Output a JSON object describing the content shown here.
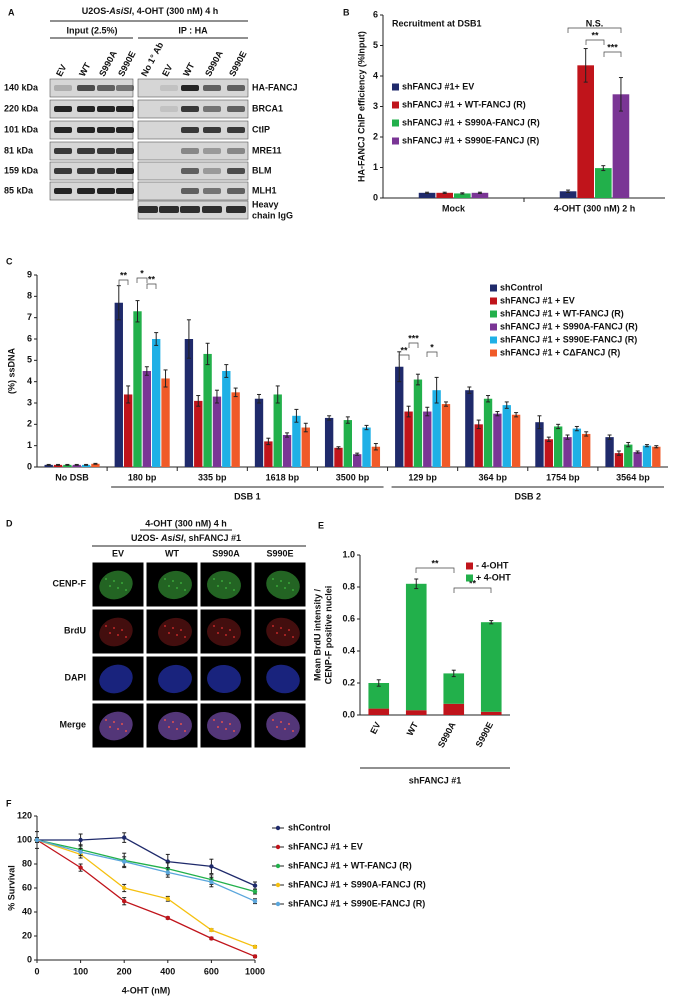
{
  "panel_labels": [
    "A",
    "B",
    "C",
    "D",
    "E",
    "F"
  ],
  "blot": {
    "title": [
      "U2OS-",
      "AsiSI",
      ", 4-OHT (300 nM) 4 h"
    ],
    "groups": [
      "Input (2.5%)",
      "IP : HA"
    ],
    "lanes": [
      "EV",
      "WT",
      "S990A",
      "S990E",
      "No 1° Ab",
      "EV",
      "WT",
      "S990A",
      "S990E"
    ],
    "markers": [
      "140 kDa",
      "220 kDa",
      "101 kDa",
      "81 kDa",
      "159 kDa",
      "85 kDa"
    ],
    "proteins": [
      "HA-FANCJ",
      "BRCA1",
      "CtIP",
      "MRE11",
      "BLM",
      "MLH1"
    ],
    "igg_label": [
      "Heavy",
      "chain IgG"
    ]
  },
  "microscopy": {
    "title": "4-OHT (300 nM) 4 h",
    "subtitle": [
      "U2OS- ",
      "AsiSI",
      ", shFANCJ #1"
    ],
    "columns": [
      "EV",
      "WT",
      "S990A",
      "S990E"
    ],
    "rows": [
      "CENP-F",
      "BrdU",
      "DAPI",
      "Merge"
    ]
  },
  "chart_data": [
    {
      "type": "bar",
      "annotation": "Recruitment at DSB1",
      "ylabel": "HA-FANCJ ChIP efficiency (%Input)",
      "categories": [
        "Mock",
        "4-OHT (300 nM) 2 h"
      ],
      "ylim": [
        0,
        6
      ],
      "yticks": [
        0,
        1,
        2,
        3,
        4,
        5,
        6
      ],
      "series": [
        {
          "name": "shFANCJ #1+ EV",
          "color": "#1f2a6b",
          "values": [
            0.17,
            0.22
          ],
          "errors": [
            0.02,
            0.04
          ]
        },
        {
          "name": "shFANCJ #1 + WT-FANCJ (R)",
          "color": "#c0141b",
          "values": [
            0.17,
            4.35
          ],
          "errors": [
            0.02,
            0.55
          ]
        },
        {
          "name": "shFANCJ #1 + S990A-FANCJ (R)",
          "color": "#22b04b",
          "values": [
            0.15,
            0.98
          ],
          "errors": [
            0.02,
            0.08
          ]
        },
        {
          "name": "shFANCJ #1 + S990E-FANCJ (R)",
          "color": "#7a3595",
          "values": [
            0.17,
            3.4
          ],
          "errors": [
            0.02,
            0.55
          ]
        }
      ],
      "significance": [
        "**",
        "***",
        "N.S."
      ]
    },
    {
      "type": "bar",
      "ylabel": "(%) ssDNA",
      "categories": [
        "No DSB",
        "180 bp",
        "335 bp",
        "1618 bp",
        "3500 bp",
        "129 bp",
        "364 bp",
        "1754 bp",
        "3564 bp"
      ],
      "group_labels": [
        "DSB 1",
        "DSB 2"
      ],
      "ylim": [
        0,
        9
      ],
      "yticks": [
        0,
        1,
        2,
        3,
        4,
        5,
        6,
        7,
        8,
        9
      ],
      "series": [
        {
          "name": "shControl",
          "color": "#1f2a6b",
          "values": [
            0.1,
            7.7,
            6.0,
            3.2,
            2.3,
            4.7,
            3.6,
            2.1,
            1.4
          ],
          "errors": [
            0.02,
            0.8,
            0.9,
            0.2,
            0.1,
            0.7,
            0.15,
            0.3,
            0.1
          ]
        },
        {
          "name": "shFANCJ #1 + EV",
          "color": "#c0141b",
          "values": [
            0.1,
            3.4,
            3.1,
            1.2,
            0.9,
            2.6,
            2.0,
            1.3,
            0.65
          ],
          "errors": [
            0.02,
            0.4,
            0.25,
            0.15,
            0.05,
            0.25,
            0.2,
            0.1,
            0.1
          ]
        },
        {
          "name": "shFANCJ #1 + WT-FANCJ  (R)",
          "color": "#22b04b",
          "values": [
            0.1,
            7.3,
            5.3,
            3.4,
            2.2,
            4.1,
            3.2,
            1.9,
            1.05
          ],
          "errors": [
            0.02,
            0.5,
            0.5,
            0.4,
            0.15,
            0.25,
            0.15,
            0.1,
            0.1
          ]
        },
        {
          "name": "shFANCJ #1 + S990A-FANCJ (R)",
          "color": "#7a3595",
          "values": [
            0.1,
            4.5,
            3.3,
            1.5,
            0.6,
            2.6,
            2.5,
            1.4,
            0.7
          ],
          "errors": [
            0.02,
            0.2,
            0.3,
            0.1,
            0.05,
            0.2,
            0.1,
            0.1,
            0.05
          ]
        },
        {
          "name": "shFANCJ #1 + S990E-FANCJ (R)",
          "color": "#1fb0e6",
          "values": [
            0.1,
            6.0,
            4.5,
            2.4,
            1.85,
            3.6,
            2.9,
            1.8,
            1.0
          ],
          "errors": [
            0.02,
            0.3,
            0.3,
            0.3,
            0.1,
            0.6,
            0.15,
            0.1,
            0.05
          ]
        },
        {
          "name": "shFANCJ #1 + CΔFANCJ (R)",
          "color": "#f05a28",
          "values": [
            0.15,
            4.15,
            3.5,
            1.85,
            0.95,
            2.95,
            2.45,
            1.55,
            0.95
          ],
          "errors": [
            0.02,
            0.4,
            0.2,
            0.2,
            0.15,
            0.1,
            0.1,
            0.1,
            0.05
          ]
        }
      ],
      "significance": [
        "**",
        "*",
        "**",
        "**",
        "***",
        "*"
      ]
    },
    {
      "type": "stacked_bar",
      "ylabel": [
        "Mean BrdU intensity /",
        "CENP-F positive nuclei"
      ],
      "xlabel": "shFANCJ #1",
      "categories": [
        "EV",
        "WT",
        "S990A",
        "S990E"
      ],
      "ylim": [
        0,
        1
      ],
      "yticks": [
        {
          "value": 0,
          "label": "0.0"
        },
        0.2,
        0.4,
        0.6,
        0.8,
        {
          "value": 1,
          "label": "1.0"
        }
      ],
      "series": [
        {
          "name": "- 4-OHT",
          "color": "#c0141b",
          "values": [
            0.04,
            0.03,
            0.07,
            0.02
          ]
        },
        {
          "name": "+ 4-OHT",
          "color": "#22b04b",
          "values": [
            0.16,
            0.79,
            0.19,
            0.56
          ],
          "errors": [
            0.02,
            0.03,
            0.02,
            0.01
          ]
        }
      ],
      "significance": [
        "**",
        "**"
      ]
    },
    {
      "type": "line",
      "xlabel": "4-OHT (nM)",
      "ylabel": "% Survival",
      "categories": [
        "0",
        "100",
        "200",
        "400",
        "600",
        "1000"
      ],
      "ylim": [
        0,
        120
      ],
      "yticks": [
        0,
        20,
        40,
        60,
        80,
        100,
        120
      ],
      "series": [
        {
          "name": "shControl",
          "color": "#1f2a6b",
          "values": [
            100,
            100,
            102,
            82,
            78,
            62
          ],
          "errors": [
            7,
            5,
            4,
            6,
            6,
            3
          ]
        },
        {
          "name": "shFANCJ #1 + EV",
          "color": "#c0141b",
          "values": [
            100,
            77,
            49,
            35,
            18,
            3
          ],
          "errors": [
            2,
            3,
            3,
            1,
            1,
            1
          ]
        },
        {
          "name": "shFANCJ #1 + WT-FANCJ (R)",
          "color": "#22b04b",
          "values": [
            100,
            92,
            83,
            76,
            67,
            57
          ],
          "errors": [
            2,
            4,
            6,
            5,
            4,
            2
          ]
        },
        {
          "name": "shFANCJ #1 + S990A-FANCJ (R)",
          "color": "#f5c010",
          "values": [
            100,
            88,
            60,
            51,
            25,
            11
          ],
          "errors": [
            2,
            3,
            3,
            2,
            1,
            1
          ]
        },
        {
          "name": "shFANCJ #1 + S990E-FANCJ (R)",
          "color": "#5aa6dc",
          "values": [
            100,
            90,
            82,
            73,
            65,
            49
          ],
          "errors": [
            2,
            3,
            4,
            4,
            4,
            2
          ]
        }
      ]
    }
  ]
}
